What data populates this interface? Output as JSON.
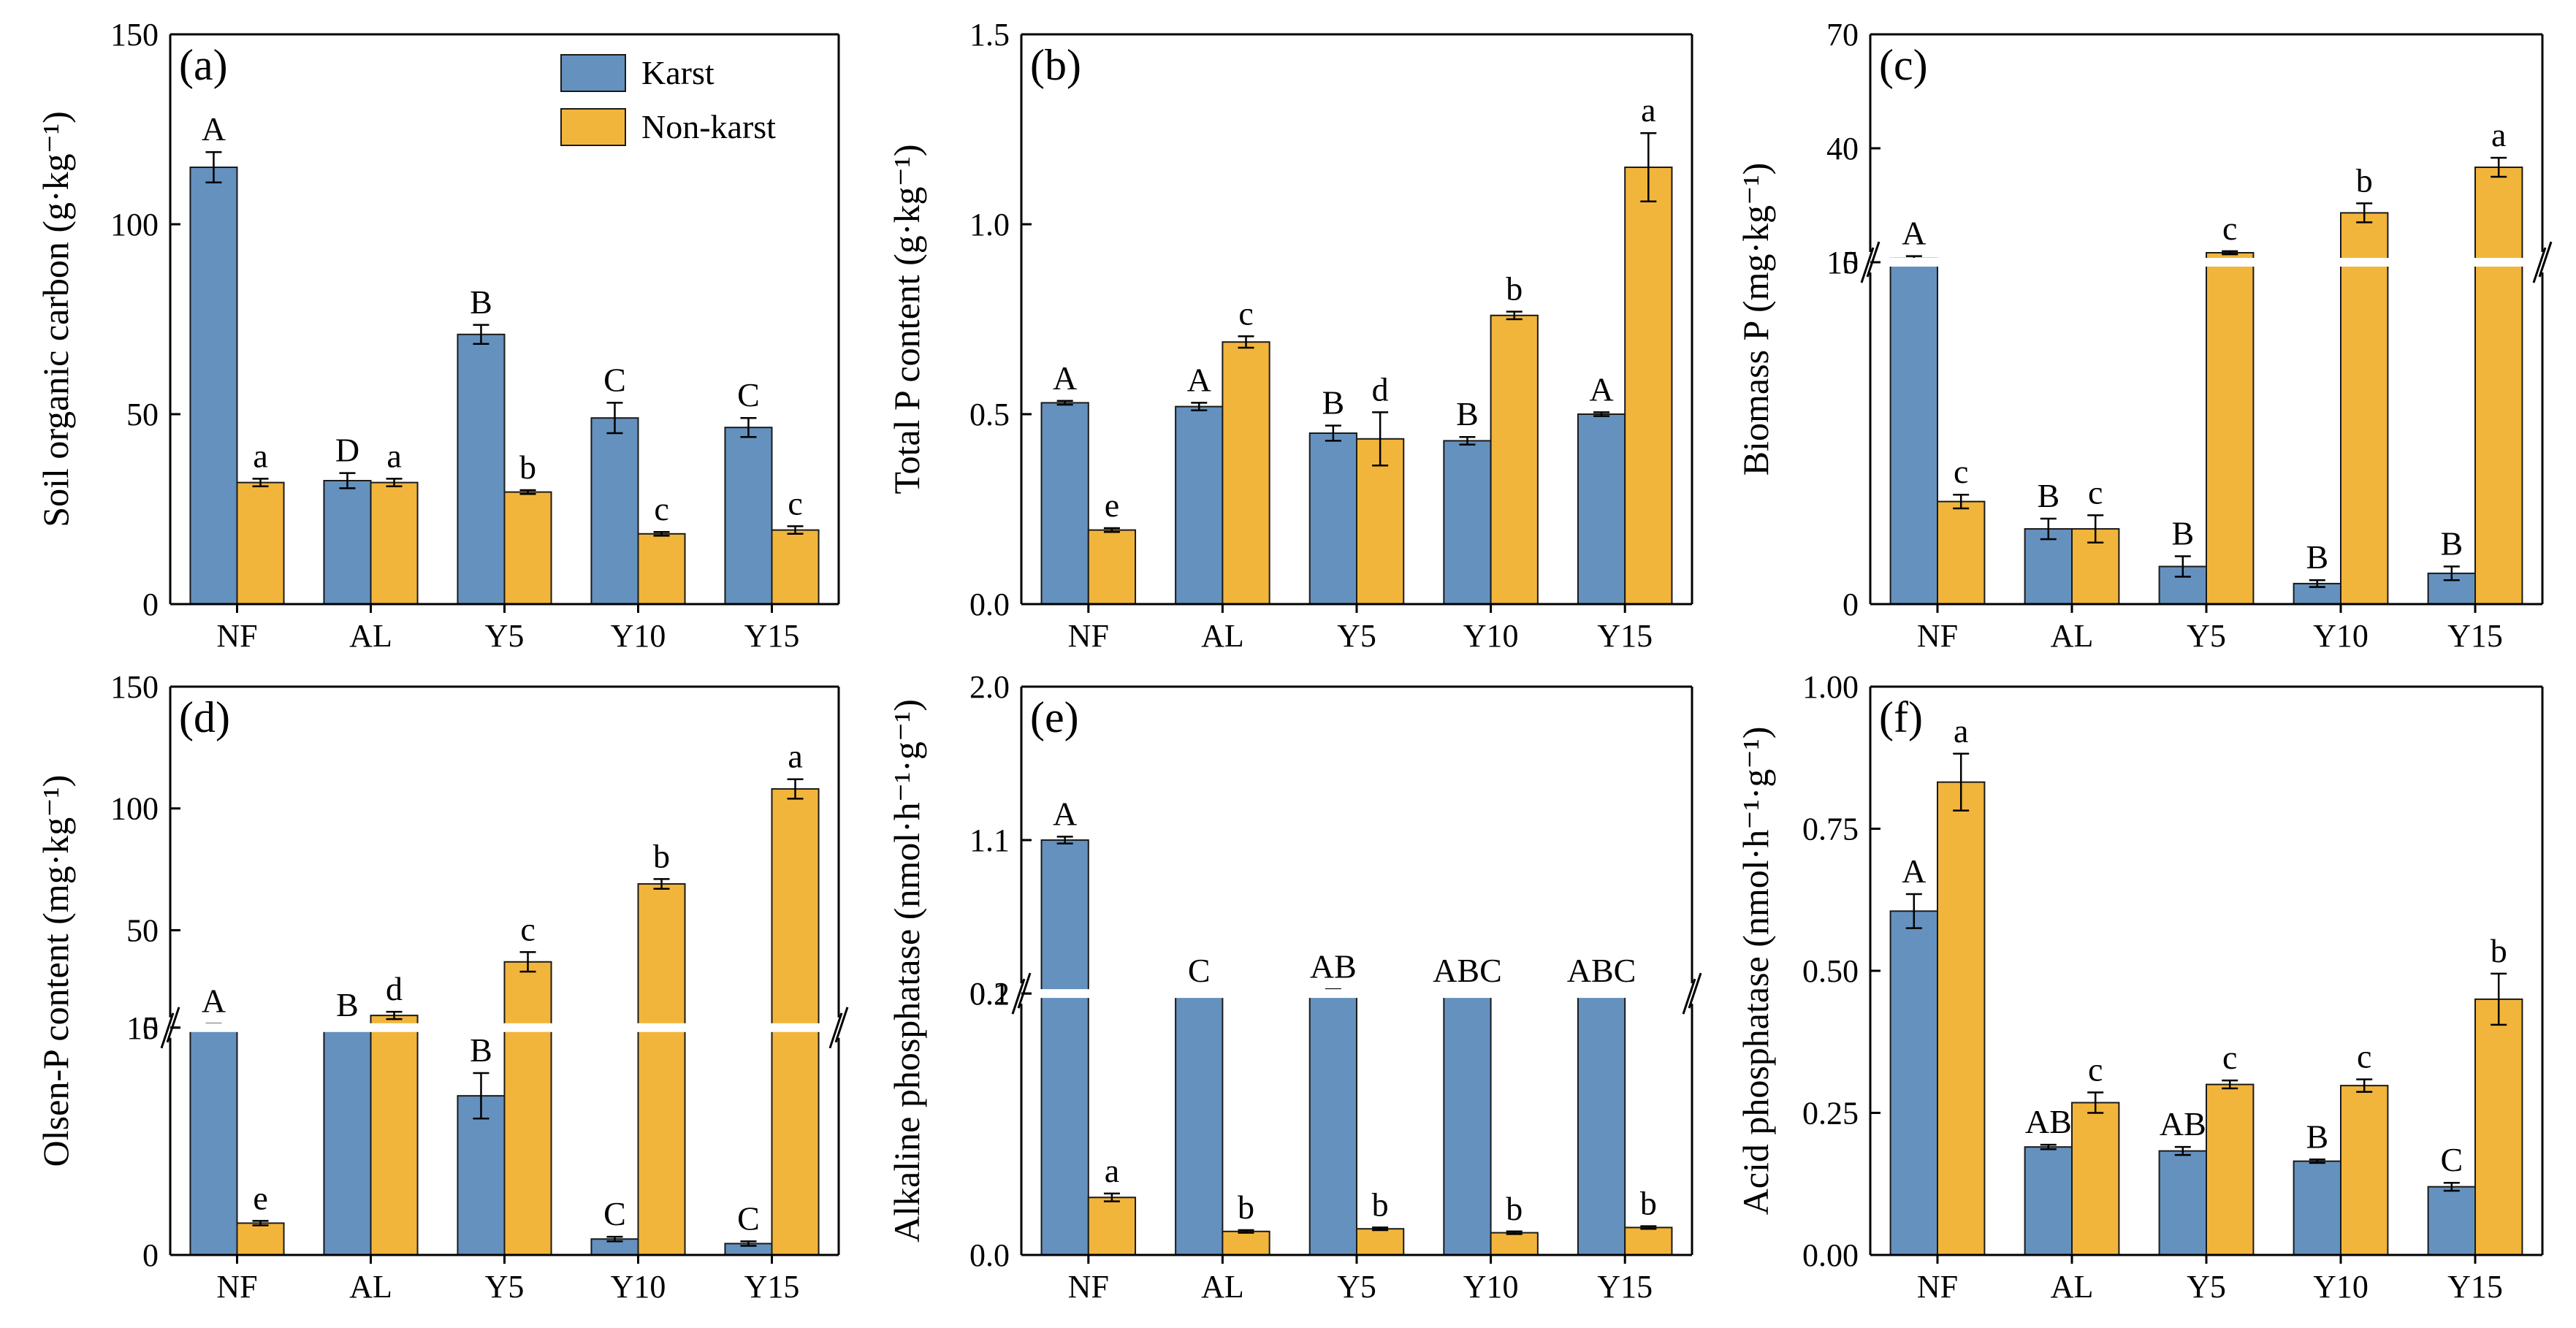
{
  "figure": {
    "karst_color": "#6591be",
    "nonkarst_color": "#f2b53b"
  },
  "legend": {
    "karst": "Karst",
    "nonkarst": "Non-karst"
  },
  "chart_data": [
    {
      "type": "bar",
      "label": "(a)",
      "ylabel": "Soil organic carbon (g·kg⁻¹)",
      "categories": [
        "NF",
        "AL",
        "Y5",
        "Y10",
        "Y15"
      ],
      "ylim": [
        0,
        150
      ],
      "yticks": [
        0,
        50,
        100,
        150
      ],
      "series": [
        {
          "name": "Karst",
          "values": [
            115,
            32.5,
            71,
            49,
            46.5
          ],
          "errors": [
            4,
            2,
            2.5,
            4,
            2.5
          ],
          "letters": [
            "A",
            "D",
            "B",
            "C",
            "C"
          ]
        },
        {
          "name": "Non-karst",
          "values": [
            32,
            32,
            29.5,
            18.5,
            19.5
          ],
          "errors": [
            1,
            1,
            0.5,
            0.5,
            1
          ],
          "letters": [
            "a",
            "a",
            "b",
            "c",
            "c"
          ]
        }
      ],
      "legend": true
    },
    {
      "type": "bar",
      "label": "(b)",
      "ylabel": "Total P content (g·kg⁻¹)",
      "categories": [
        "NF",
        "AL",
        "Y5",
        "Y10",
        "Y15"
      ],
      "ylim": [
        0,
        1.5
      ],
      "yticks": [
        0,
        0.5,
        1.0,
        1.5
      ],
      "ytick_labels": [
        "0.0",
        "0.5",
        "1.0",
        "1.5"
      ],
      "series": [
        {
          "name": "Karst",
          "values": [
            0.53,
            0.52,
            0.45,
            0.43,
            0.5
          ],
          "errors": [
            0.005,
            0.01,
            0.02,
            0.01,
            0.005
          ],
          "letters": [
            "A",
            "A",
            "B",
            "B",
            "A"
          ]
        },
        {
          "name": "Non-karst",
          "values": [
            0.195,
            0.69,
            0.435,
            0.76,
            1.15
          ],
          "errors": [
            0.005,
            0.015,
            0.07,
            0.01,
            0.09
          ],
          "letters": [
            "e",
            "c",
            "d",
            "b",
            "a"
          ]
        }
      ]
    },
    {
      "type": "bar",
      "label": "(c)",
      "ylabel": "Biomass P (mg·kg⁻¹)",
      "categories": [
        "NF",
        "AL",
        "Y5",
        "Y10",
        "Y15"
      ],
      "broken_axis": {
        "lower": [
          0,
          5
        ],
        "upper": [
          10,
          70
        ],
        "lower_frac": 0.6
      },
      "yticks": [
        0,
        5,
        10,
        40,
        70
      ],
      "series": [
        {
          "name": "Karst",
          "values": [
            11,
            1.1,
            0.55,
            0.3,
            0.45
          ],
          "errors": [
            0.6,
            0.15,
            0.15,
            0.05,
            0.1
          ],
          "letters": [
            "A",
            "B",
            "B",
            "B",
            "B"
          ]
        },
        {
          "name": "Non-karst",
          "values": [
            1.5,
            1.1,
            12.5,
            23,
            35
          ],
          "errors": [
            0.1,
            0.2,
            0.4,
            2.5,
            2.5
          ],
          "letters": [
            "c",
            "c",
            "c",
            "b",
            "a"
          ]
        }
      ]
    },
    {
      "type": "bar",
      "label": "(d)",
      "ylabel": "Olsen-P content (mg·kg⁻¹)",
      "categories": [
        "NF",
        "AL",
        "Y5",
        "Y10",
        "Y15"
      ],
      "broken_axis": {
        "lower": [
          0,
          5
        ],
        "upper": [
          10,
          150
        ],
        "lower_frac": 0.4
      },
      "yticks": [
        0,
        5,
        10,
        50,
        100,
        150
      ],
      "series": [
        {
          "name": "Karst",
          "values": [
            11,
            9,
            3.5,
            0.35,
            0.25
          ],
          "errors": [
            0.6,
            0.4,
            0.5,
            0.05,
            0.05
          ],
          "letters": [
            "A",
            "B",
            "B",
            "C",
            "C"
          ]
        },
        {
          "name": "Non-karst",
          "values": [
            0.7,
            15,
            37,
            69,
            108
          ],
          "errors": [
            0.05,
            1.5,
            4,
            2,
            4
          ],
          "letters": [
            "e",
            "d",
            "c",
            "b",
            "a"
          ]
        }
      ]
    },
    {
      "type": "bar",
      "label": "(e)",
      "ylabel": "Alkaline phosphatase (nmol·h⁻¹·g⁻¹)",
      "categories": [
        "NF",
        "AL",
        "Y5",
        "Y10",
        "Y15"
      ],
      "broken_axis": {
        "lower": [
          0,
          0.1
        ],
        "upper": [
          0.2,
          2.0
        ],
        "lower_frac": 0.46
      },
      "yticks": [
        0,
        0.1,
        0.2,
        1.1,
        2.0
      ],
      "ytick_labels": [
        "0.0",
        "0.1",
        "0.2",
        "1.1",
        "2.0"
      ],
      "series": [
        {
          "name": "Karst",
          "values": [
            1.1,
            0.16,
            0.21,
            0.2,
            0.165
          ],
          "errors": [
            0.02,
            0.005,
            0.015,
            0.0,
            0.008
          ],
          "letters": [
            "A",
            "C",
            "AB",
            "ABC",
            "ABC"
          ]
        },
        {
          "name": "Non-karst",
          "values": [
            0.022,
            0.009,
            0.01,
            0.0085,
            0.0105
          ],
          "errors": [
            0.0015,
            0.0005,
            0.0005,
            0.0005,
            0.0005
          ],
          "letters": [
            "a",
            "b",
            "b",
            "b",
            "b"
          ]
        }
      ]
    },
    {
      "type": "bar",
      "label": "(f)",
      "ylabel": "Acid phosphatase (nmol·h⁻¹·g⁻¹)",
      "categories": [
        "NF",
        "AL",
        "Y5",
        "Y10",
        "Y15"
      ],
      "ylim": [
        0,
        1.0
      ],
      "yticks": [
        0,
        0.25,
        0.5,
        0.75,
        1.0
      ],
      "ytick_labels": [
        "0.00",
        "0.25",
        "0.50",
        "0.75",
        "1.00"
      ],
      "series": [
        {
          "name": "Karst",
          "values": [
            0.605,
            0.19,
            0.183,
            0.165,
            0.12
          ],
          "errors": [
            0.03,
            0.004,
            0.007,
            0.003,
            0.007
          ],
          "letters": [
            "A",
            "AB",
            "AB",
            "B",
            "C"
          ]
        },
        {
          "name": "Non-karst",
          "values": [
            0.832,
            0.268,
            0.3,
            0.298,
            0.45
          ],
          "errors": [
            0.05,
            0.018,
            0.007,
            0.011,
            0.045
          ],
          "letters": [
            "a",
            "c",
            "c",
            "c",
            "b"
          ]
        }
      ]
    }
  ]
}
